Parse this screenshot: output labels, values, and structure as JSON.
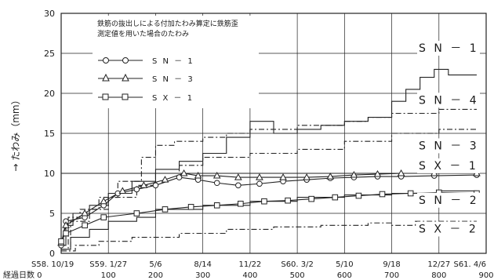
{
  "chart_data": {
    "type": "line",
    "ylabel": "→ たわみ（mm）",
    "xlabel": "経過日数",
    "ylim": [
      0,
      30
    ],
    "xlim": [
      0,
      900
    ],
    "yticks": [
      0,
      5,
      10,
      15,
      20,
      25,
      30
    ],
    "date_ticks": [
      {
        "label": "S58. 10/19",
        "x": 0
      },
      {
        "label": "S59. 1/27",
        "x": 100
      },
      {
        "label": "5/6",
        "x": 200
      },
      {
        "label": "8/14",
        "x": 300
      },
      {
        "label": "11/22",
        "x": 400
      },
      {
        "label": "S60. 3/2",
        "x": 500
      },
      {
        "label": "5/10",
        "x": 600
      },
      {
        "label": "9/18",
        "x": 700
      },
      {
        "label": "12/27",
        "x": 800
      },
      {
        "label": "S61. 4/6",
        "x": 900
      }
    ],
    "day_ticks": [
      {
        "label": "経過日数  0",
        "x": 0
      },
      {
        "label": "100",
        "x": 100
      },
      {
        "label": "200",
        "x": 200
      },
      {
        "label": "300",
        "x": 300
      },
      {
        "label": "400",
        "x": 400
      },
      {
        "label": "500",
        "x": 500
      },
      {
        "label": "600",
        "x": 600
      },
      {
        "label": "700",
        "x": 700
      },
      {
        "label": "800",
        "x": 800
      },
      {
        "label": "900",
        "x": 900
      }
    ],
    "legend_note": [
      "鉄筋の抜出しによる付加たわみ算定に鉄筋歪",
      "測定値を用いた場合のたわみ"
    ],
    "legend": [
      {
        "label": "S N － 1",
        "marker": "circle"
      },
      {
        "label": "S N － 3",
        "marker": "triangle"
      },
      {
        "label": "S X － 1",
        "marker": "square"
      }
    ],
    "series": [
      {
        "name": "S N － 1",
        "style": "solid-step",
        "x": [
          0,
          10,
          10,
          25,
          25,
          60,
          60,
          100,
          100,
          150,
          150,
          200,
          200,
          250,
          250,
          300,
          300,
          350,
          350,
          400,
          400,
          450,
          450,
          500,
          500,
          550,
          550,
          600,
          600,
          650,
          650,
          700,
          700,
          730,
          730,
          760,
          760,
          790,
          790,
          820,
          820,
          880
        ],
        "y": [
          1,
          1,
          3.5,
          3.5,
          5,
          5,
          6,
          6,
          7.5,
          7.5,
          9,
          9,
          10.5,
          10.5,
          11.5,
          11.5,
          12.5,
          12.5,
          14.5,
          14.5,
          16.5,
          16.5,
          15,
          15,
          15.5,
          15.5,
          16,
          16,
          16.5,
          16.5,
          17,
          17,
          19,
          19,
          20.5,
          20.5,
          22,
          22,
          23,
          23,
          22.3,
          22.3
        ]
      },
      {
        "name": "S N － 4",
        "style": "dashdot-step",
        "x": [
          0,
          15,
          15,
          40,
          40,
          80,
          80,
          120,
          120,
          170,
          170,
          200,
          200,
          240,
          240,
          300,
          300,
          350,
          350,
          400,
          400,
          500,
          500,
          600,
          600,
          650,
          650,
          700,
          700,
          750,
          750,
          800,
          800,
          880
        ],
        "y": [
          0.5,
          0.5,
          4.5,
          4.5,
          5.5,
          5.5,
          7,
          7,
          9,
          9,
          12,
          12,
          13.5,
          13.5,
          14,
          14,
          14.5,
          14.5,
          15,
          15,
          15.5,
          15.5,
          16,
          16,
          16.5,
          16.5,
          17,
          17,
          17.5,
          17.5,
          17.5,
          17.5,
          18,
          18
        ]
      },
      {
        "name": "S N － 3",
        "style": "dashdot-step",
        "x": [
          0,
          20,
          20,
          60,
          60,
          100,
          100,
          160,
          160,
          200,
          200,
          250,
          250,
          300,
          300,
          400,
          400,
          500,
          500,
          600,
          600,
          700,
          700,
          800,
          800,
          880
        ],
        "y": [
          0.5,
          0.5,
          4,
          4,
          5.5,
          5.5,
          7,
          7,
          8.5,
          8.5,
          10,
          10,
          11,
          11,
          12,
          12,
          12.5,
          12.5,
          13,
          13,
          14,
          14,
          15,
          15,
          15.5,
          15.5
        ]
      },
      {
        "name": "S X － 1",
        "style": "solid-flat",
        "x": [
          0,
          880
        ],
        "y": [
          10,
          10
        ]
      },
      {
        "name": "S N － 2",
        "style": "solid-step",
        "x": [
          0,
          20,
          20,
          60,
          60,
          100,
          100,
          160,
          160,
          200,
          200,
          300,
          300,
          400,
          400,
          500,
          500,
          600,
          600,
          700,
          700,
          800,
          800,
          880
        ],
        "y": [
          0.5,
          0.5,
          2,
          2,
          3,
          3,
          4,
          4,
          4.5,
          4.5,
          5.5,
          5.5,
          6,
          6,
          6.5,
          6.5,
          7,
          7,
          7.3,
          7.3,
          7.5,
          7.5,
          7.8,
          7.8
        ]
      },
      {
        "name": "S X － 2",
        "style": "dashdot-step",
        "x": [
          0,
          30,
          30,
          80,
          80,
          150,
          150,
          250,
          250,
          350,
          350,
          450,
          450,
          550,
          550,
          650,
          650,
          700,
          700,
          750,
          750,
          880
        ],
        "y": [
          0.3,
          0.3,
          1,
          1,
          1.5,
          1.5,
          2,
          2,
          2.5,
          2.5,
          3,
          3,
          3.3,
          3.3,
          3.5,
          3.5,
          3.8,
          3.8,
          3.5,
          3.5,
          4,
          4
        ]
      },
      {
        "name": "S N － 1 (鉄筋歪)",
        "style": "circle-markers",
        "x": [
          0,
          10,
          50,
          90,
          120,
          160,
          200,
          250,
          290,
          330,
          375,
          420,
          470,
          520,
          570,
          620,
          670,
          720,
          790,
          880
        ],
        "y": [
          1,
          4,
          4.5,
          6,
          7.5,
          8,
          8.5,
          9.5,
          9.2,
          8.8,
          8.5,
          8.7,
          9,
          9.2,
          9.4,
          9.5,
          9.6,
          9.6,
          9.7,
          9.8
        ]
      },
      {
        "name": "S N － 3 (鉄筋歪)",
        "style": "triangle-markers",
        "x": [
          0,
          10,
          50,
          90,
          130,
          175,
          220,
          260,
          290,
          330,
          375,
          420,
          470,
          520,
          570,
          620,
          670,
          720,
          790,
          880
        ],
        "y": [
          1.3,
          3.5,
          5,
          6.5,
          7.8,
          8.5,
          9.2,
          10,
          9.7,
          9.7,
          9.5,
          9.5,
          9.5,
          9.5,
          9.6,
          9.8,
          9.9,
          10,
          10,
          10
        ]
      },
      {
        "name": "S X － 1 (鉄筋歪)",
        "style": "square-markers",
        "x": [
          0,
          10,
          50,
          90,
          160,
          220,
          275,
          330,
          380,
          430,
          480,
          530,
          580,
          630,
          680,
          740,
          800,
          880
        ],
        "y": [
          1.5,
          2.5,
          3.5,
          4.5,
          5,
          5.5,
          5.8,
          6,
          6.2,
          6.5,
          6.6,
          6.8,
          7,
          7.2,
          7.4,
          7.5,
          7.6,
          7.5
        ]
      }
    ],
    "series_labels": [
      {
        "label": "S N － 1",
        "y": 25.2
      },
      {
        "label": "S N － 4",
        "y": 18.7
      },
      {
        "label": "S N － 3",
        "y": 13.0
      },
      {
        "label": "S X － 1",
        "y": 10.5
      },
      {
        "label": "S N － 2",
        "y": 6.2
      },
      {
        "label": "S X － 2",
        "y": 2.6
      }
    ]
  }
}
